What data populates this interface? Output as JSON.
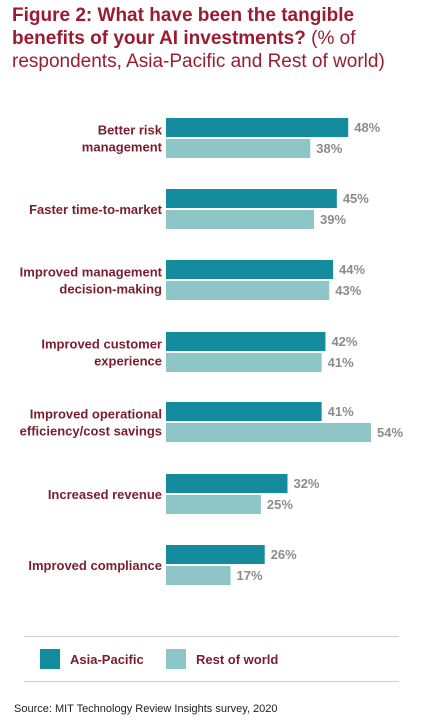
{
  "title": {
    "bold": "Figure 2: What have been the tangible benefits of your AI investments?",
    "regular": " (% of respondents, Asia-Pacific and Rest of world)"
  },
  "colors": {
    "asia_pacific": "#158c9e",
    "rest_of_world": "#8ec5c6",
    "category_text": "#7a1e2e",
    "value_text": "#8c8c8c",
    "title": "#9b1c31"
  },
  "chart_data": {
    "type": "bar",
    "orientation": "horizontal",
    "categories": [
      [
        "Better risk",
        "management"
      ],
      [
        "Faster time-to-market"
      ],
      [
        "Improved management",
        "decision-making"
      ],
      [
        "Improved customer",
        "experience"
      ],
      [
        "Improved operational",
        "efficiency/cost savings"
      ],
      [
        "Increased revenue"
      ],
      [
        "Improved compliance"
      ]
    ],
    "series": [
      {
        "name": "Asia-Pacific",
        "values": [
          48,
          45,
          44,
          42,
          41,
          32,
          26
        ]
      },
      {
        "name": "Rest of world",
        "values": [
          38,
          39,
          43,
          41,
          54,
          25,
          17
        ]
      }
    ],
    "value_suffix": "%",
    "xlim": [
      0,
      54
    ],
    "grid": false,
    "legend_position": "bottom"
  },
  "legend": {
    "items": [
      {
        "label": "Asia-Pacific"
      },
      {
        "label": "Rest of world"
      }
    ]
  },
  "source": "Source: MIT Technology Review Insights survey, 2020"
}
